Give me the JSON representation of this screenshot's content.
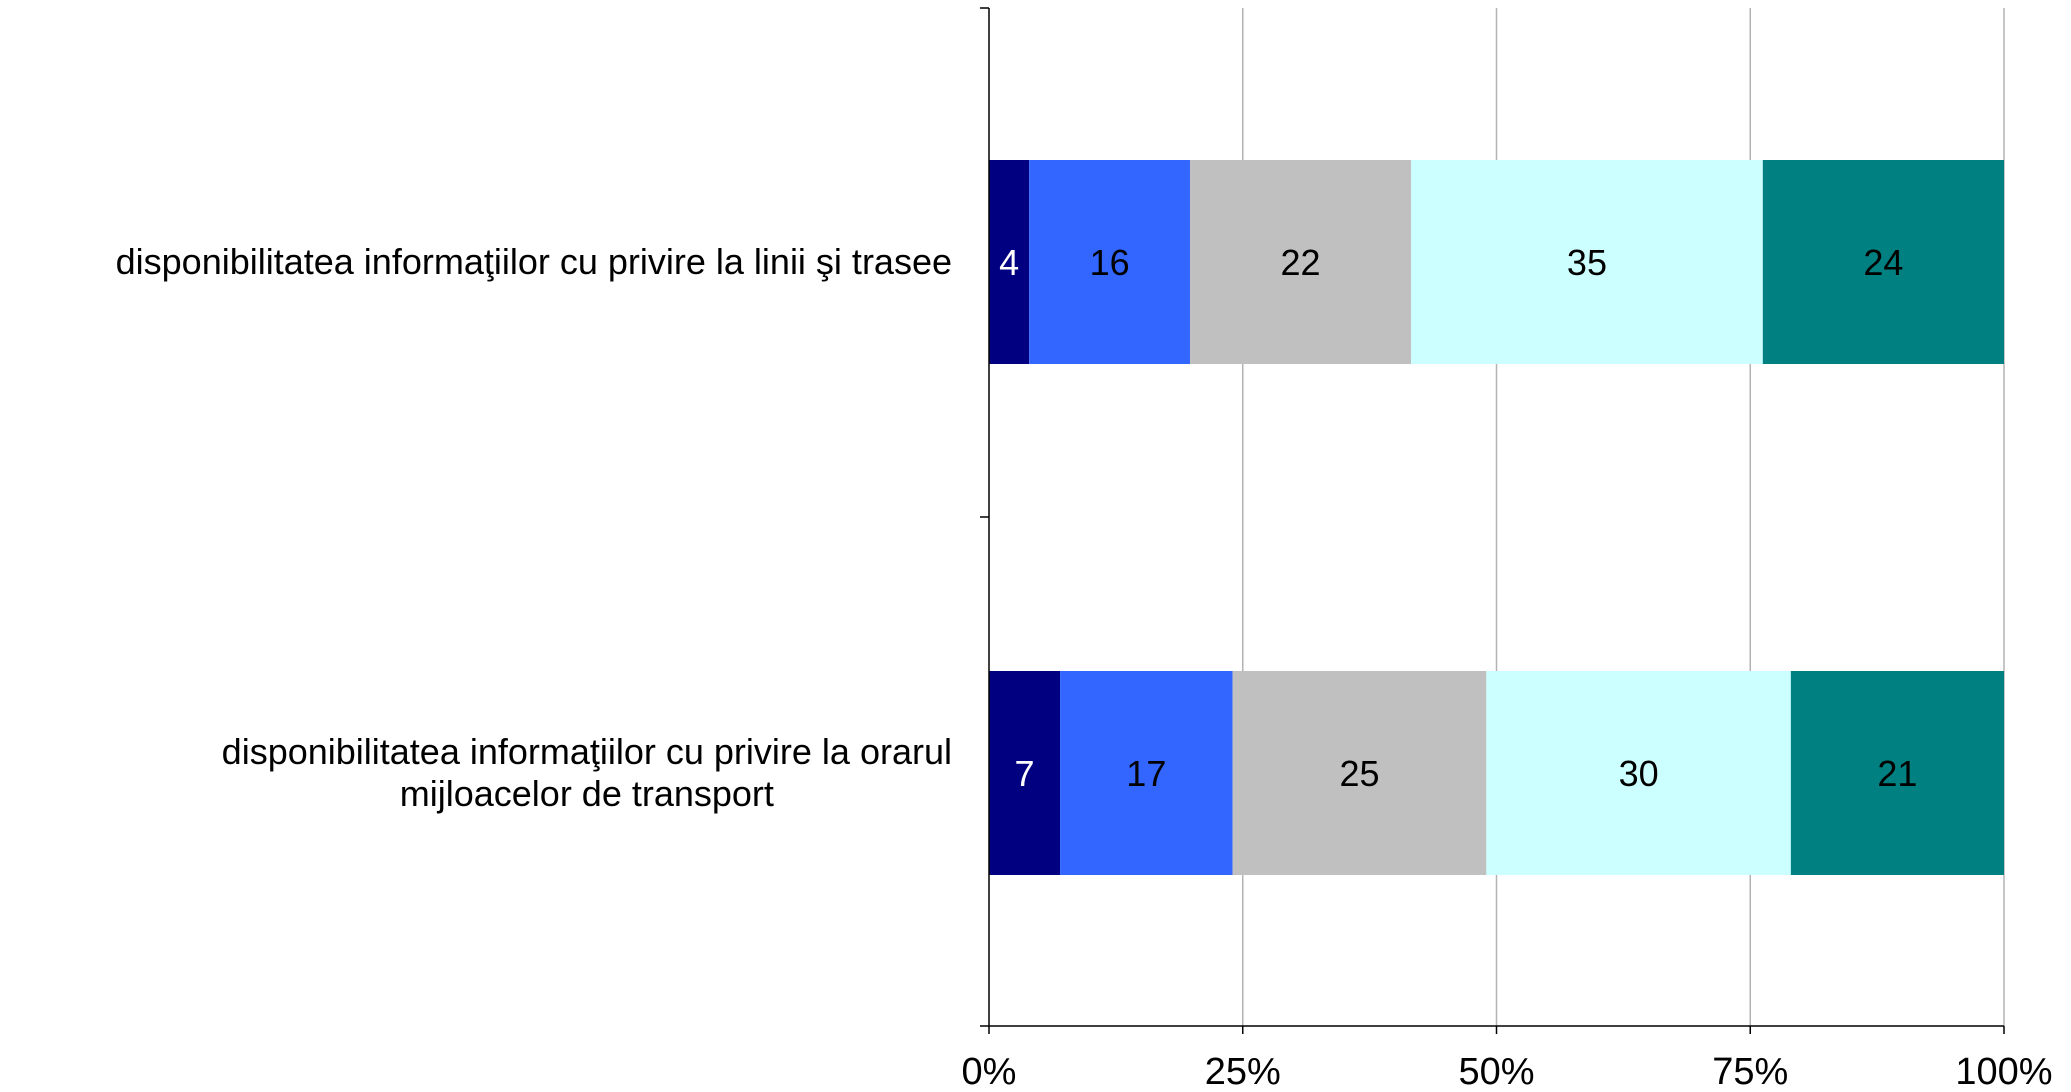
{
  "chart_data": {
    "type": "bar",
    "orientation": "horizontal",
    "stacked": "percent",
    "categories": [
      [
        "disponibilitatea informaţiilor cu privire la linii şi trasee"
      ],
      [
        "disponibilitatea informaţiilor cu privire la orarul",
        "mijloacelor de transport"
      ]
    ],
    "series": [
      {
        "color": "#000080",
        "label_color": "#ffffff",
        "values": [
          4,
          7
        ]
      },
      {
        "color": "#3366ff",
        "label_color": "#000000",
        "values": [
          16,
          17
        ]
      },
      {
        "color": "#c0c0c0",
        "label_color": "#000000",
        "values": [
          22,
          25
        ]
      },
      {
        "color": "#ccffff",
        "label_color": "#000000",
        "values": [
          35,
          30
        ]
      },
      {
        "color": "#008080",
        "label_color": "#000000",
        "values": [
          24,
          21
        ]
      }
    ],
    "x_ticks": [
      "0%",
      "25%",
      "50%",
      "75%",
      "100%"
    ],
    "xlim": [
      0,
      100
    ],
    "grid": "vertical",
    "legend": "none"
  }
}
